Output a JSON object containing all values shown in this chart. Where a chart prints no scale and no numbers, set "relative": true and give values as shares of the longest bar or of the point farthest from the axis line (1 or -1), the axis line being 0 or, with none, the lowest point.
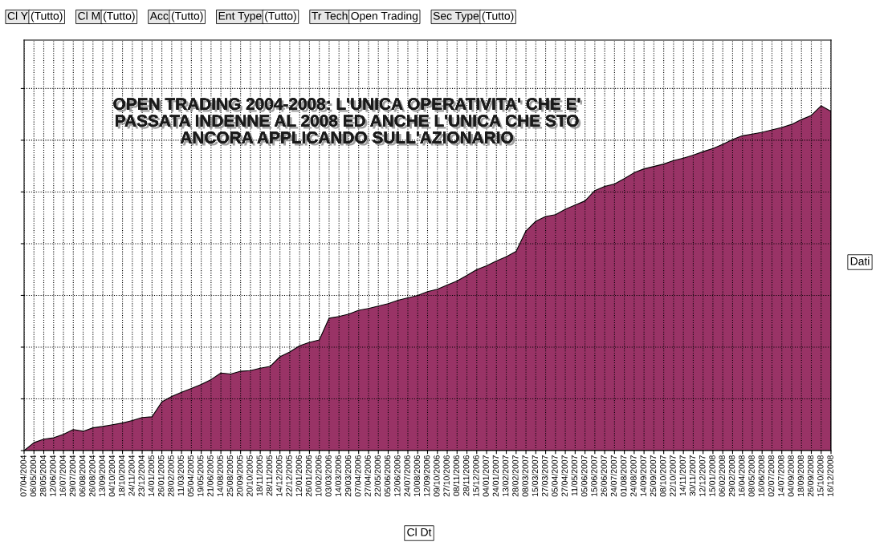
{
  "chart_data": {
    "type": "area",
    "title": "OPEN TRADING 2004-2008: L'UNICA OPERATIVITA' CHE E' PASSATA INDENNE AL 2008 ED ANCHE L'UNICA CHE STO ANCORA APPLICANDO SULL'AZIONARIO",
    "categories": [
      "07/04/2004",
      "06/05/2004",
      "28/05/2004",
      "12/06/2004",
      "16/07/2004",
      "29/07/2004",
      "06/08/2004",
      "26/08/2004",
      "13/09/2004",
      "04/10/2004",
      "18/10/2004",
      "24/11/2004",
      "23/12/2004",
      "14/01/2005",
      "26/01/2005",
      "28/02/2005",
      "11/03/2005",
      "05/04/2005",
      "19/05/2005",
      "21/06/2005",
      "14/08/2005",
      "25/08/2005",
      "20/09/2005",
      "20/10/2005",
      "18/11/2005",
      "28/11/2005",
      "14/12/2005",
      "22/12/2005",
      "12/01/2006",
      "26/01/2006",
      "10/02/2006",
      "03/03/2006",
      "14/03/2006",
      "29/03/2006",
      "07/04/2006",
      "27/04/2006",
      "22/05/2006",
      "05/06/2006",
      "12/06/2006",
      "24/07/2006",
      "10/08/2006",
      "12/09/2006",
      "09/10/2006",
      "27/10/2006",
      "08/11/2006",
      "28/11/2006",
      "15/12/2006",
      "04/01/2007",
      "24/01/2007",
      "13/02/2007",
      "28/02/2007",
      "08/03/2007",
      "15/03/2007",
      "27/03/2007",
      "05/04/2007",
      "27/04/2007",
      "11/05/2007",
      "05/06/2007",
      "15/06/2007",
      "26/06/2007",
      "24/07/2007",
      "01/08/2007",
      "24/08/2007",
      "14/09/2007",
      "25/09/2007",
      "08/10/2007",
      "22/10/2007",
      "14/11/2007",
      "30/11/2007",
      "12/12/2007",
      "15/01/2008",
      "06/02/2008",
      "29/02/2008",
      "16/04/2008",
      "08/05/2008",
      "16/06/2008",
      "02/07/2008",
      "14/07/2008",
      "04/09/2008",
      "18/09/2008",
      "26/09/2008",
      "15/10/2008",
      "16/12/2008"
    ],
    "series": [
      {
        "color": "#993366",
        "values": [
          0,
          0.023,
          0.033,
          0.037,
          0.047,
          0.061,
          0.056,
          0.066,
          0.07,
          0.075,
          0.08,
          0.087,
          0.096,
          0.098,
          0.141,
          0.157,
          0.169,
          0.18,
          0.192,
          0.206,
          0.225,
          0.222,
          0.23,
          0.232,
          0.239,
          0.244,
          0.272,
          0.286,
          0.304,
          0.314,
          0.321,
          0.384,
          0.389,
          0.396,
          0.407,
          0.412,
          0.419,
          0.426,
          0.436,
          0.443,
          0.45,
          0.461,
          0.468,
          0.48,
          0.492,
          0.508,
          0.525,
          0.536,
          0.55,
          0.562,
          0.578,
          0.637,
          0.665,
          0.679,
          0.684,
          0.7,
          0.712,
          0.724,
          0.754,
          0.766,
          0.773,
          0.789,
          0.806,
          0.817,
          0.824,
          0.831,
          0.841,
          0.848,
          0.857,
          0.867,
          0.876,
          0.888,
          0.902,
          0.913,
          0.918,
          0.923,
          0.93,
          0.937,
          0.946,
          0.96,
          0.972,
          1,
          0.984
        ]
      }
    ],
    "relative": true,
    "grid": true,
    "annotations": [
      "Cl Y",
      "(Tutto)",
      "Cl M",
      "(Tutto)",
      "Acc",
      "(Tutto)",
      "Ent Type",
      "(Tutto)",
      "Tr Tech",
      "Open Trading",
      "Sec Type",
      "(Tutto)",
      "Dati",
      "Cl Dt"
    ]
  }
}
